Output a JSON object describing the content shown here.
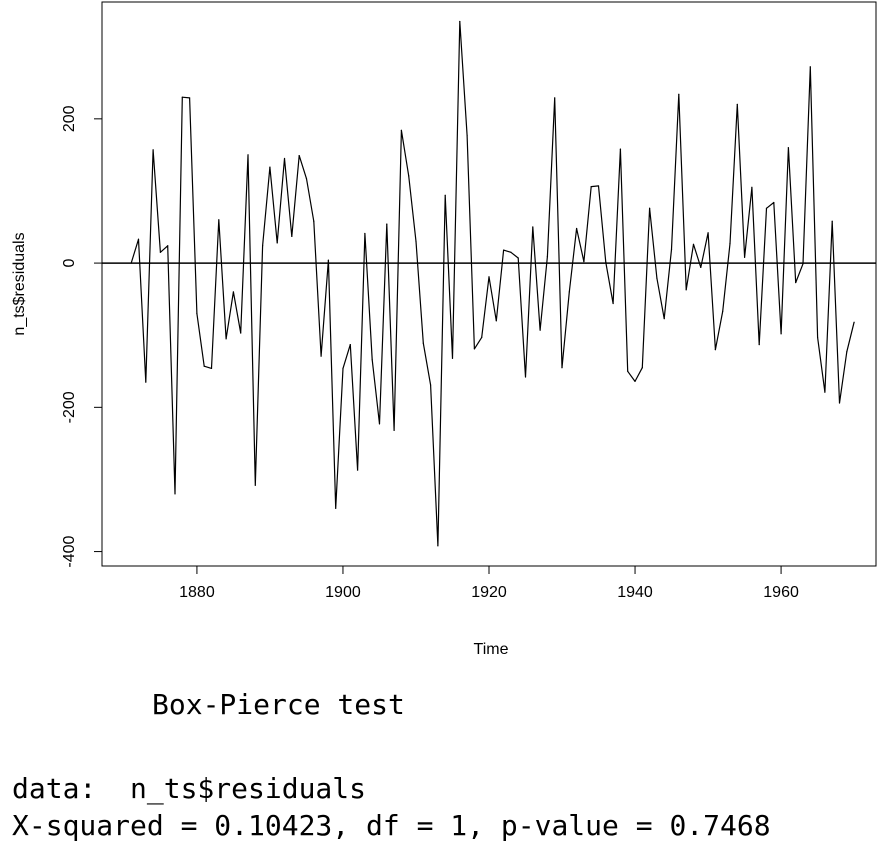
{
  "chart_data": {
    "type": "line",
    "xlabel": "Time",
    "ylabel": "n_ts$residuals",
    "xlim": [
      1867,
      1973
    ],
    "ylim": [
      -420,
      362
    ],
    "x_ticks": [
      1880,
      1900,
      1920,
      1940,
      1960
    ],
    "y_ticks": [
      -400,
      -200,
      0,
      200
    ],
    "reference_line_y": 0,
    "x_start": 1871,
    "values": [
      0,
      33,
      -165,
      157,
      15,
      24,
      -320,
      230,
      229,
      -70,
      -143,
      -146,
      60,
      -105,
      -40,
      -97,
      150,
      -308,
      24,
      133,
      28,
      145,
      37,
      149,
      117,
      58,
      -129,
      4,
      -340,
      -146,
      -113,
      -287,
      41,
      -134,
      -223,
      54,
      -232,
      184,
      121,
      30,
      -111,
      -169,
      -392,
      94,
      -132,
      335,
      177,
      -119,
      -103,
      -19,
      -80,
      18,
      15,
      7,
      -158,
      50,
      -93,
      9,
      229,
      -145,
      -40,
      48,
      2,
      106,
      107,
      1,
      -56,
      158,
      -150,
      -164,
      -145,
      76,
      -21,
      -77,
      19,
      234,
      -37,
      26,
      -6,
      42,
      -120,
      -67,
      27,
      220,
      8,
      105,
      -113,
      76,
      84,
      -98,
      160,
      -27,
      -1,
      272,
      -103,
      -179,
      58,
      -194,
      -123,
      -82
    ]
  },
  "console": {
    "test_title": "Box-Pierce test",
    "data_line": "data:  n_ts$residuals",
    "stat_line": "X-squared = 0.10423, df = 1, p-value = 0.7468"
  }
}
